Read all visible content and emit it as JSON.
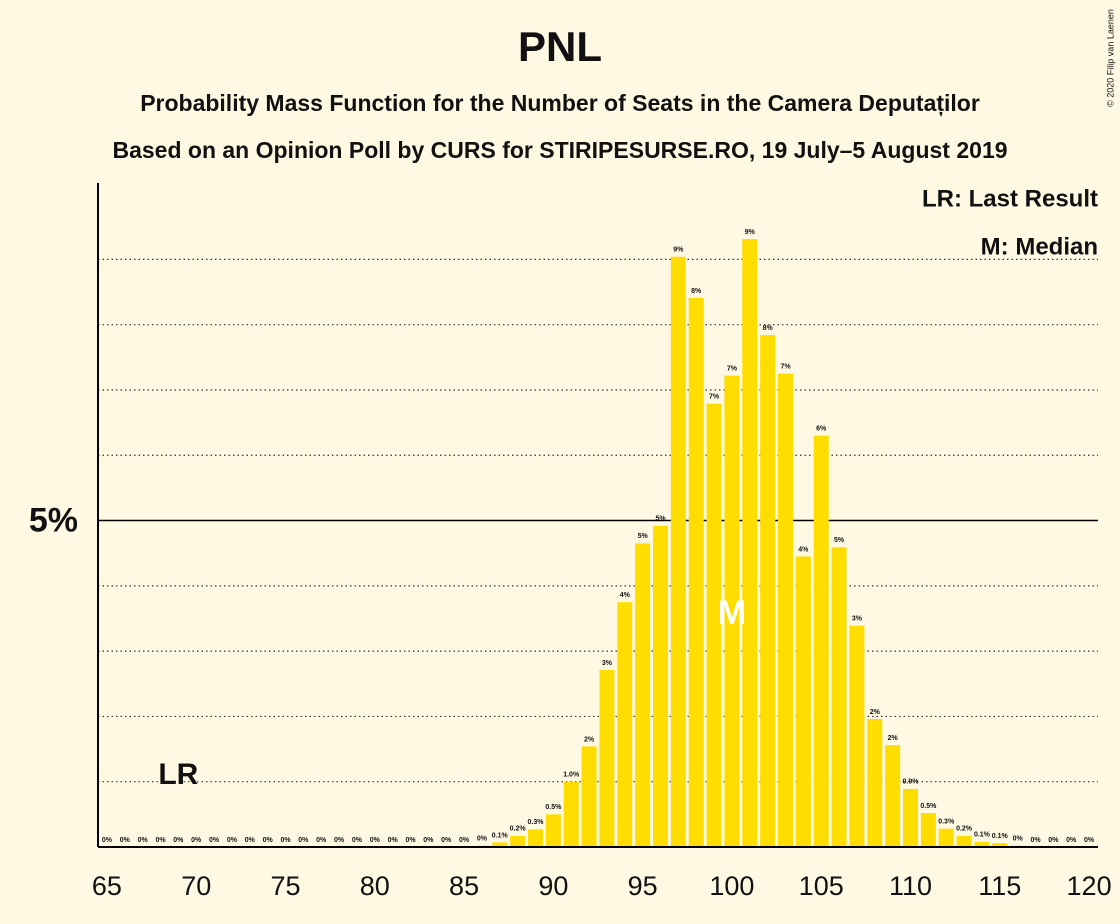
{
  "chart_data": {
    "type": "bar",
    "title": "PNL",
    "subtitle": [
      "Probability Mass Function for the Number of Seats in the Camera Deputaților",
      "Based on an Opinion Poll by CURS for STIRIPESURSE.RO, 19 July–5 August 2019"
    ],
    "credit": "© 2020 Filip van Laenen",
    "legend": [
      "LR: Last Result",
      "M: Median"
    ],
    "last_result": {
      "seat": 69,
      "label": "LR"
    },
    "median": {
      "seat": 100,
      "label": "M"
    },
    "color": "#ffdd00",
    "x": [
      65,
      66,
      67,
      68,
      69,
      70,
      71,
      72,
      73,
      74,
      75,
      76,
      77,
      78,
      79,
      80,
      81,
      82,
      83,
      84,
      85,
      86,
      87,
      88,
      89,
      90,
      91,
      92,
      93,
      94,
      95,
      96,
      97,
      98,
      99,
      100,
      101,
      102,
      103,
      104,
      105,
      106,
      107,
      108,
      109,
      110,
      111,
      112,
      113,
      114,
      115,
      116,
      117,
      118,
      119,
      120
    ],
    "values": [
      0,
      0,
      0,
      0,
      0,
      0,
      0,
      0,
      0,
      0,
      0,
      0,
      0,
      0,
      0,
      0,
      0,
      0,
      0,
      0,
      0,
      0.02,
      0.07,
      0.17,
      0.27,
      0.5,
      1.0,
      1.54,
      2.71,
      3.75,
      4.65,
      4.92,
      9.04,
      8.41,
      6.79,
      7.22,
      9.31,
      7.84,
      7.25,
      4.45,
      6.3,
      4.59,
      3.39,
      1.96,
      1.56,
      0.89,
      0.52,
      0.28,
      0.17,
      0.08,
      0.06,
      0.02,
      0,
      0,
      0,
      0
    ],
    "value_labels": [
      "0%",
      "0%",
      "0%",
      "0%",
      "0%",
      "0%",
      "0%",
      "0%",
      "0%",
      "0%",
      "0%",
      "0%",
      "0%",
      "0%",
      "0%",
      "0%",
      "0%",
      "0%",
      "0%",
      "0%",
      "0%",
      "0%",
      "0.1%",
      "0.2%",
      "0.3%",
      "0.5%",
      "1.0%",
      "2%",
      "3%",
      "4%",
      "5%",
      "5%",
      "9%",
      "8%",
      "7%",
      "7%",
      "9%",
      "8%",
      "7%",
      "4%",
      "6%",
      "5%",
      "3%",
      "2%",
      "2%",
      "0.9%",
      "0.5%",
      "0.3%",
      "0.2%",
      "0.1%",
      "0.1%",
      "0%",
      "0%",
      "0%",
      "0%",
      "0%"
    ],
    "xlim": [
      64.5,
      120.5
    ],
    "xticks": [
      65,
      70,
      75,
      80,
      85,
      90,
      95,
      100,
      105,
      110,
      115,
      120
    ],
    "ylim": [
      0,
      10.17
    ],
    "yticks": [
      {
        "value": 5,
        "label": "5%"
      }
    ],
    "grid_lines": [
      1,
      2,
      3,
      4,
      6,
      7,
      8,
      9
    ]
  }
}
